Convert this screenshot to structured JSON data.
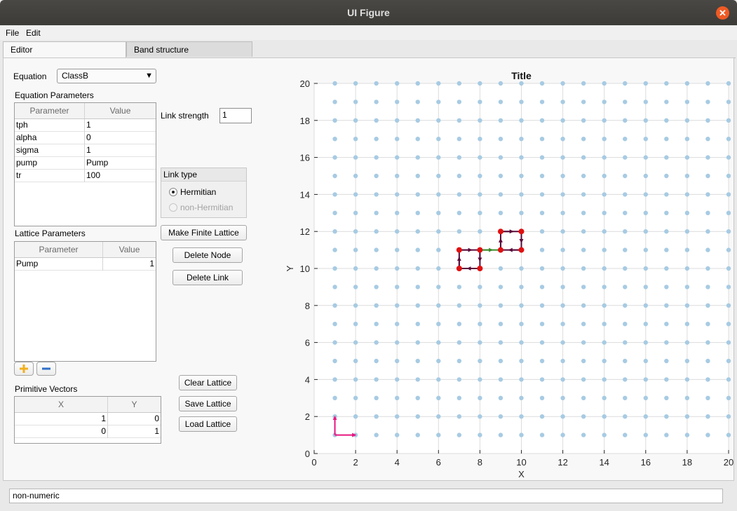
{
  "window": {
    "title": "UI Figure",
    "close_icon": "close-icon"
  },
  "menu": {
    "items": [
      "File",
      "Edit"
    ]
  },
  "tabs": [
    {
      "label": "Editor",
      "active": true
    },
    {
      "label": "Band structure",
      "active": false
    }
  ],
  "editor": {
    "equation_label": "Equation",
    "equation_value": "ClassB",
    "equation_params": {
      "title": "Equation Parameters",
      "columns": [
        "Parameter",
        "Value"
      ],
      "rows": [
        [
          "tph",
          "1"
        ],
        [
          "alpha",
          "0"
        ],
        [
          "sigma",
          "1"
        ],
        [
          "pump",
          "Pump"
        ],
        [
          "tr",
          "100"
        ]
      ]
    },
    "link_strength_label": "Link strength",
    "link_strength_value": "1",
    "link_type": {
      "title": "Link type",
      "options": [
        "Hermitian",
        "non-Hermitian"
      ],
      "selected": "Hermitian",
      "disabled": [
        "non-Hermitian"
      ]
    },
    "buttons": {
      "make_finite": "Make Finite Lattice",
      "delete_node": "Delete Node",
      "delete_link": "Delete Link",
      "clear": "Clear Lattice",
      "save": "Save Lattice",
      "load": "Load Lattice"
    },
    "lattice_params": {
      "title": "Lattice Parameters",
      "columns": [
        "Parameter",
        "Value"
      ],
      "rows": [
        [
          "Pump",
          "1"
        ]
      ]
    },
    "add_icon": "plus-icon",
    "remove_icon": "minus-icon",
    "primitive_vectors": {
      "title": "Primitive Vectors",
      "columns": [
        "X",
        "Y"
      ],
      "rows": [
        [
          "1",
          "0"
        ],
        [
          "0",
          "1"
        ]
      ]
    }
  },
  "status_text": "non-numeric",
  "chart_data": {
    "type": "scatter",
    "title": "Title",
    "xlabel": "X",
    "ylabel": "Y",
    "xlim": [
      0,
      20
    ],
    "ylim": [
      0,
      20
    ],
    "xticks": [
      "0",
      "2",
      "4",
      "6",
      "8",
      "10",
      "12",
      "14",
      "16",
      "18",
      "20"
    ],
    "yticks": [
      "0",
      "2",
      "4",
      "6",
      "8",
      "10",
      "12",
      "14",
      "16",
      "18",
      "20"
    ],
    "grid": true,
    "lattice_points": {
      "x_range": [
        1,
        20
      ],
      "y_range": [
        1,
        20
      ],
      "color": "#a7cbe3"
    },
    "nodes": [
      [
        7,
        10
      ],
      [
        8,
        10
      ],
      [
        7,
        11
      ],
      [
        8,
        11
      ],
      [
        9,
        11
      ],
      [
        10,
        11
      ],
      [
        9,
        12
      ],
      [
        10,
        12
      ]
    ],
    "node_color": "#e01010",
    "links": [
      {
        "from": [
          7,
          11
        ],
        "to": [
          8,
          11
        ],
        "color": "#5a0a3a"
      },
      {
        "from": [
          8,
          11
        ],
        "to": [
          8,
          10
        ],
        "color": "#5a0a3a"
      },
      {
        "from": [
          8,
          10
        ],
        "to": [
          7,
          10
        ],
        "color": "#5a0a3a"
      },
      {
        "from": [
          7,
          10
        ],
        "to": [
          7,
          11
        ],
        "color": "#5a0a3a"
      },
      {
        "from": [
          8,
          11
        ],
        "to": [
          9,
          11
        ],
        "color": "#3a8a2a"
      },
      {
        "from": [
          9,
          11
        ],
        "to": [
          9,
          12
        ],
        "color": "#5a0a3a"
      },
      {
        "from": [
          9,
          12
        ],
        "to": [
          10,
          12
        ],
        "color": "#5a0a3a"
      },
      {
        "from": [
          10,
          12
        ],
        "to": [
          10,
          11
        ],
        "color": "#5a0a3a"
      },
      {
        "from": [
          10,
          11
        ],
        "to": [
          9,
          11
        ],
        "color": "#5a0a3a"
      }
    ],
    "primitive_vector_arrows": [
      {
        "from": [
          1,
          1
        ],
        "to": [
          2,
          1
        ],
        "color": "#e8157e"
      },
      {
        "from": [
          1,
          1
        ],
        "to": [
          1,
          2
        ],
        "color": "#e8157e"
      }
    ]
  }
}
